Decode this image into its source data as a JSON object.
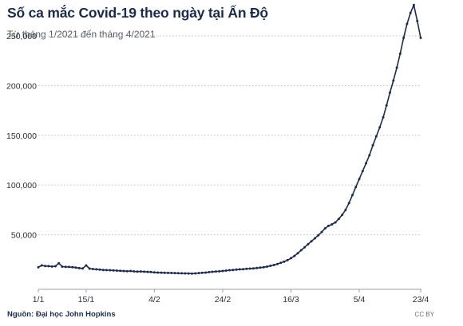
{
  "chart_data": {
    "type": "line",
    "title": "Số ca mắc Covid-19 theo ngày tại Ấn Độ",
    "subtitle": "Từ tháng 1/2021 đến tháng 4/2021",
    "source": "Nguồn: Đại học John Hopkins",
    "license": "CC BY",
    "ylim": [
      0,
      270000
    ],
    "y_ticks": [
      {
        "value": 50000,
        "label": "50,000"
      },
      {
        "value": 100000,
        "label": "100,000"
      },
      {
        "value": 150000,
        "label": "150,000"
      },
      {
        "value": 200000,
        "label": "200,000"
      },
      {
        "value": 250000,
        "label": "250,000"
      }
    ],
    "x_ticks": [
      "1/1",
      "15/1",
      "4/2",
      "24/2",
      "16/3",
      "5/4",
      "23/4"
    ],
    "x_tick_days": [
      0,
      14,
      34,
      54,
      74,
      94,
      112
    ],
    "grid": "horizontal dotted",
    "series": [
      {
        "color": "#1c2b4a",
        "days": [
          0,
          1,
          2,
          3,
          4,
          5,
          6,
          7,
          8,
          9,
          10,
          11,
          12,
          13,
          14,
          15,
          16,
          17,
          18,
          19,
          20,
          21,
          22,
          23,
          24,
          25,
          26,
          27,
          28,
          29,
          30,
          31,
          32,
          33,
          34,
          35,
          36,
          37,
          38,
          39,
          40,
          41,
          42,
          43,
          44,
          45,
          46,
          47,
          48,
          49,
          50,
          51,
          52,
          53,
          54,
          55,
          56,
          57,
          58,
          59,
          60,
          61,
          62,
          63,
          64,
          65,
          66,
          67,
          68,
          69,
          70,
          71,
          72,
          73,
          74,
          75,
          76,
          77,
          78,
          79,
          80,
          81,
          82,
          83,
          84,
          85,
          86,
          87,
          88,
          89,
          90,
          91,
          92,
          93,
          94,
          95,
          96,
          97,
          98,
          99,
          100,
          101,
          102,
          103,
          104,
          105,
          106,
          107,
          108,
          109,
          110,
          111,
          112
        ],
        "values": [
          17500,
          19200,
          18700,
          18500,
          18100,
          18400,
          21500,
          18000,
          17800,
          17700,
          17500,
          17100,
          16500,
          16200,
          19200,
          16000,
          15600,
          15300,
          15000,
          14700,
          14500,
          14400,
          14200,
          14000,
          13800,
          13600,
          13400,
          13600,
          13200,
          13000,
          13100,
          12900,
          12700,
          12600,
          12200,
          12000,
          11900,
          11800,
          11700,
          11600,
          11500,
          11400,
          11300,
          11200,
          11100,
          11000,
          11200,
          11500,
          11800,
          12000,
          12500,
          12800,
          13100,
          13300,
          13600,
          14000,
          14400,
          14700,
          15000,
          15300,
          15500,
          15800,
          16000,
          16300,
          16600,
          17000,
          17500,
          18000,
          18800,
          19600,
          20600,
          21800,
          23000,
          24500,
          26500,
          28800,
          31500,
          34500,
          37500,
          40500,
          43500,
          46500,
          49500,
          52800,
          56500,
          59000,
          60500,
          62500,
          66000,
          70000,
          75000,
          82000,
          90000,
          98000,
          106000,
          114000,
          122000,
          130000,
          140000,
          149000,
          158000,
          168000,
          180000,
          193000,
          205000,
          218000,
          232000,
          248000,
          262000,
          273000,
          281000,
          265000,
          248000
        ]
      }
    ]
  }
}
